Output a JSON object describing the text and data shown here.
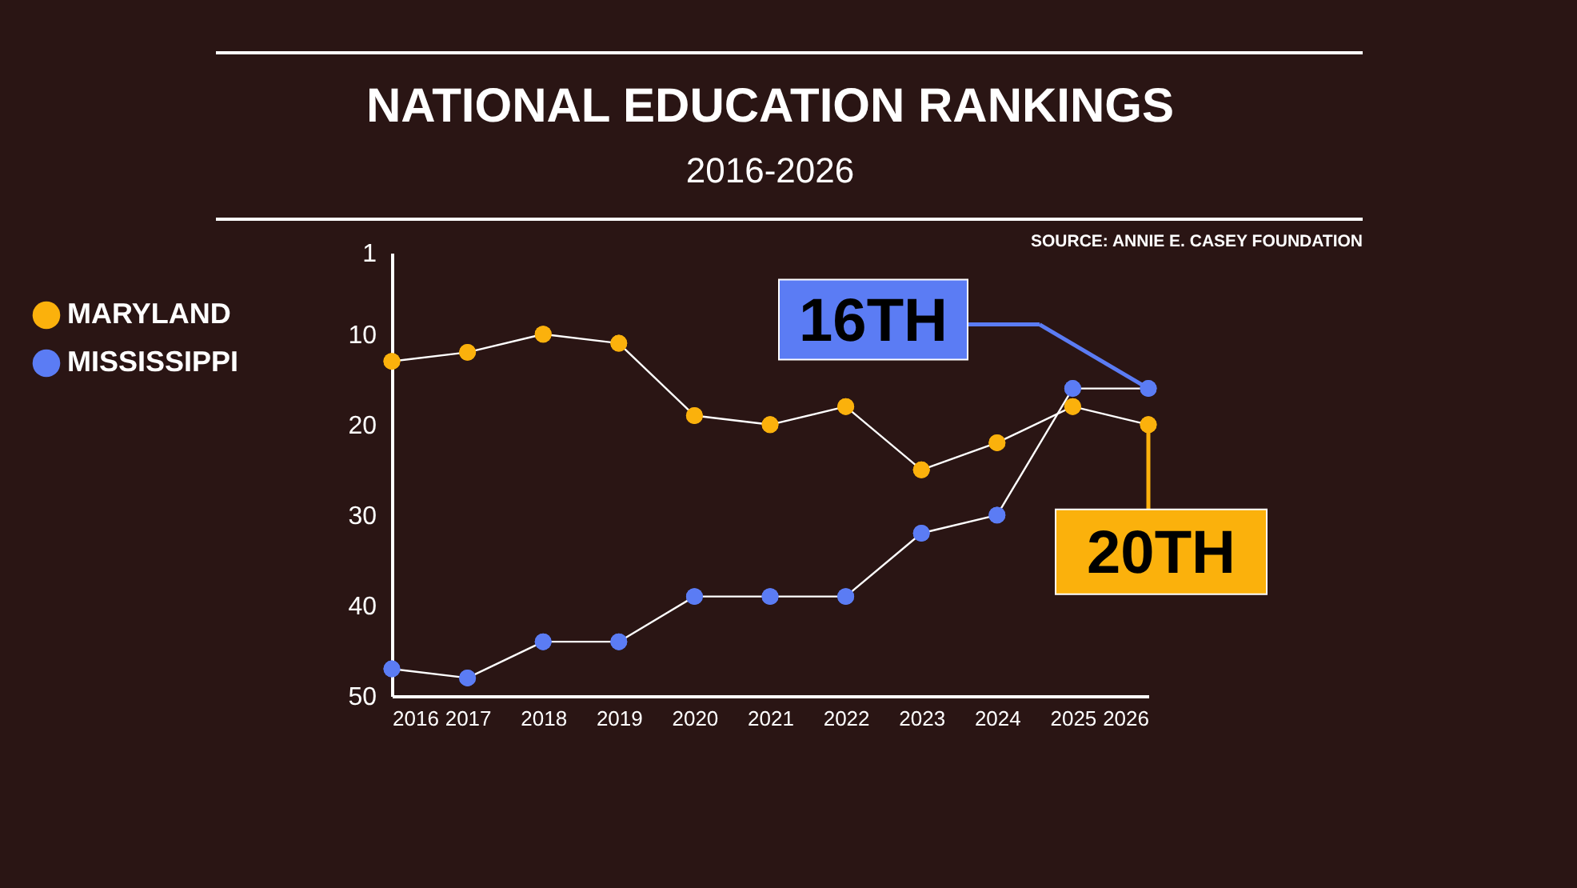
{
  "chart_data": {
    "type": "line",
    "title": "NATIONAL EDUCATION RANKINGS",
    "subtitle": "2016-2026",
    "x": [
      2016,
      2017,
      2018,
      2019,
      2020,
      2021,
      2022,
      2023,
      2024,
      2025,
      2026
    ],
    "xlim": [
      2016,
      2026
    ],
    "xticks": [
      2016,
      2017,
      2018,
      2019,
      2020,
      2021,
      2022,
      2023,
      2024,
      2025,
      2026
    ],
    "ylim": [
      50,
      1
    ],
    "yticks": [
      1,
      10,
      20,
      30,
      40,
      50
    ],
    "series": [
      {
        "name": "MARYLAND",
        "color": "#fbb10c",
        "values": [
          13,
          12,
          10,
          11,
          19,
          20,
          18,
          25,
          22,
          18,
          20
        ]
      },
      {
        "name": "MISSISSIPPI",
        "color": "#5b7cf4",
        "values": [
          47,
          48,
          44,
          44,
          39,
          39,
          39,
          32,
          30,
          16,
          16
        ]
      }
    ],
    "annotations": [
      "16TH",
      {
        "text": "20TH",
        "x": 2026,
        "y": 20
      },
      "SOURCE: ANNIE E. CASEY FOUNDATION"
    ],
    "marker": "circle",
    "line_style": "solid",
    "grid": false,
    "legend": "top left"
  }
}
